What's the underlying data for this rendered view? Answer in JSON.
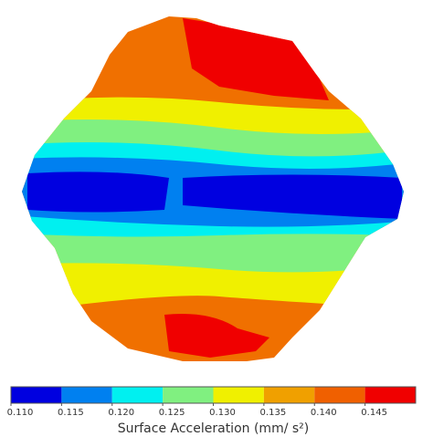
{
  "chart_data": {
    "type": "colorbar",
    "xlabel": "Surface Acceleration  (mm/ s²)",
    "bins": [
      0.11,
      0.115,
      0.12,
      0.125,
      0.13,
      0.135,
      0.14,
      0.145,
      0.15
    ],
    "colors": [
      "#0000e0",
      "#0080f0",
      "#00f0f0",
      "#80f080",
      "#f0f000",
      "#f0a000",
      "#f06000",
      "#f00000"
    ],
    "xlim": [
      0.11,
      0.15
    ],
    "xticks": [
      {
        "value": 0.11,
        "label": "0.110"
      },
      {
        "value": 0.115,
        "label": "0.115"
      },
      {
        "value": 0.12,
        "label": "0.120"
      },
      {
        "value": 0.125,
        "label": "0.125"
      },
      {
        "value": 0.13,
        "label": "0.130"
      },
      {
        "value": 0.135,
        "label": "0.135"
      },
      {
        "value": 0.14,
        "label": "0.140"
      },
      {
        "value": 0.145,
        "label": "0.145"
      }
    ]
  }
}
